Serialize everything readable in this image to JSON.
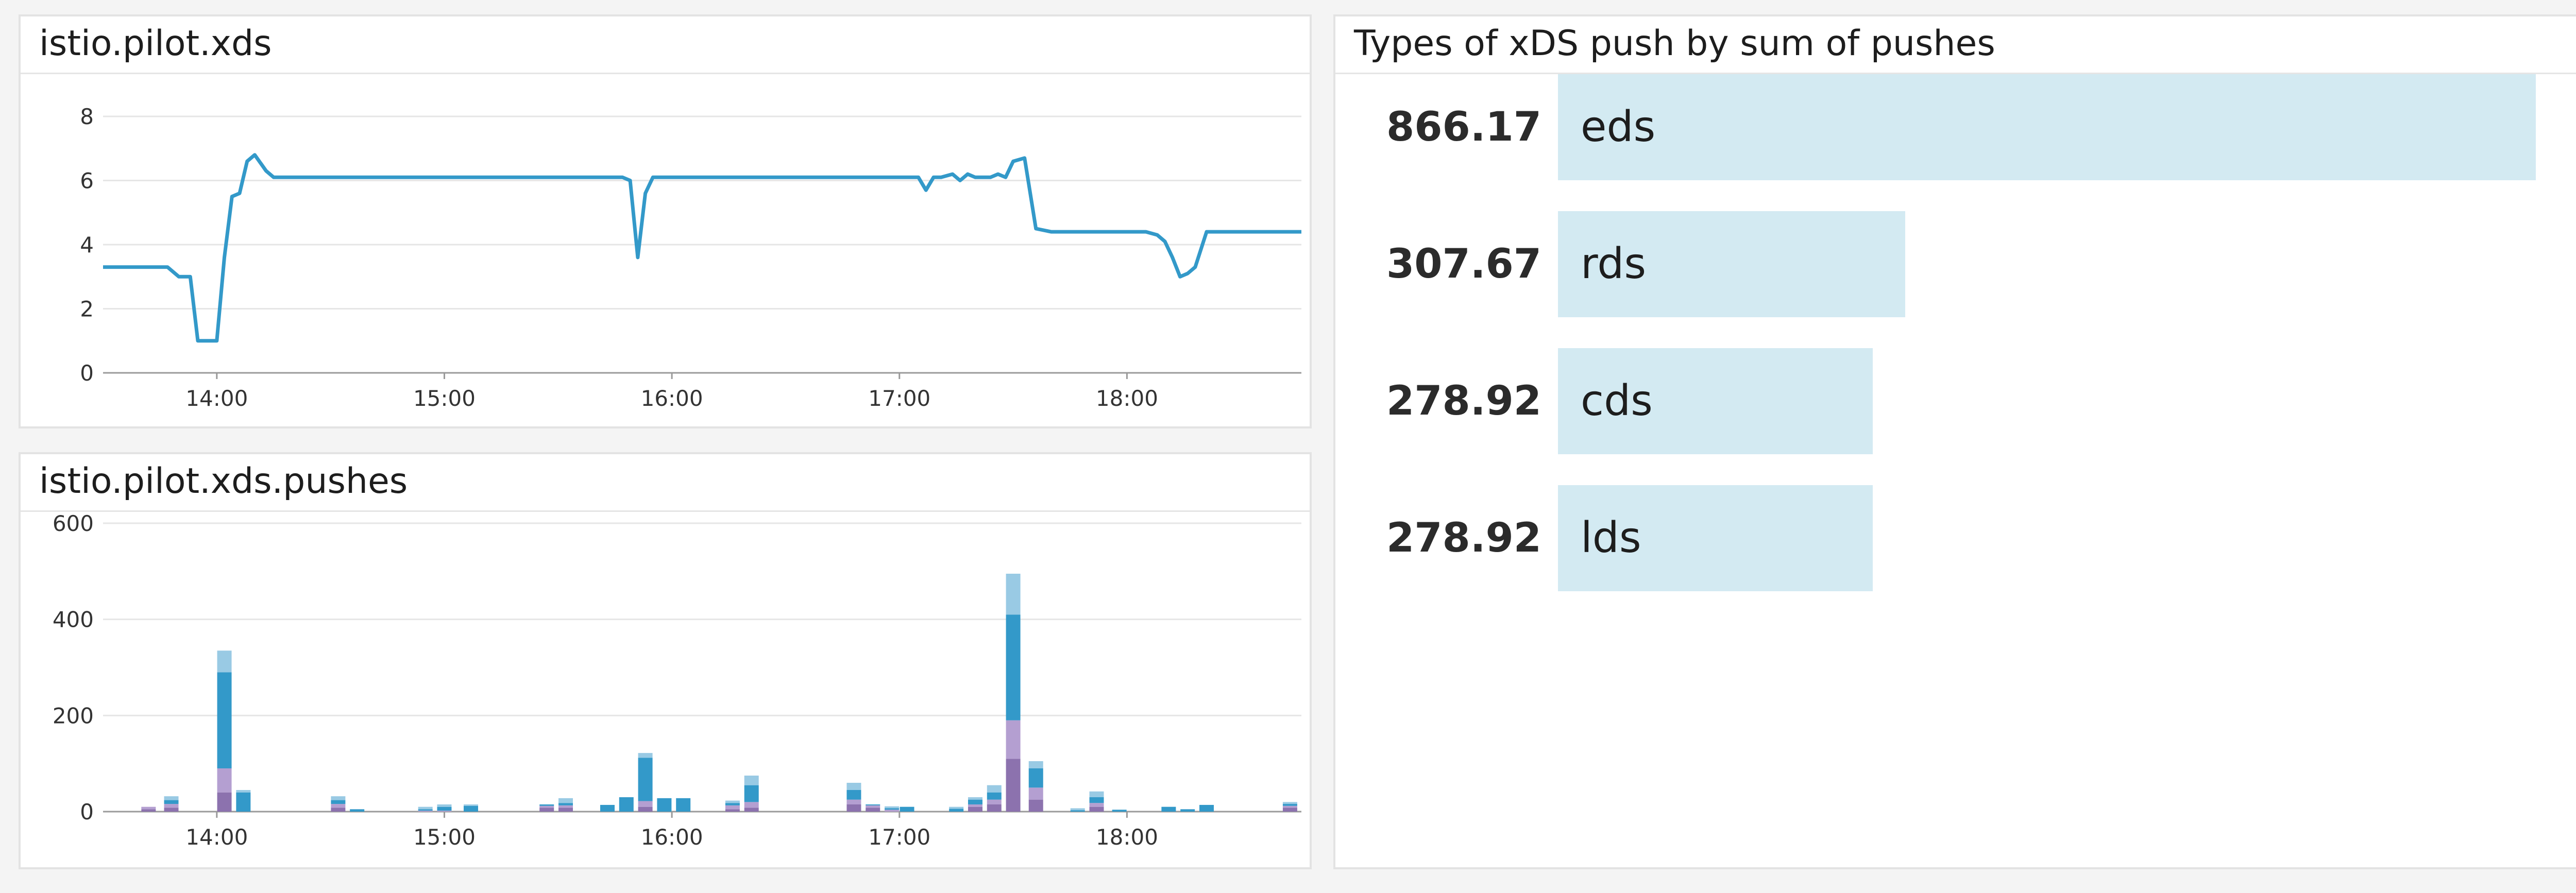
{
  "panels": {
    "xds": {
      "title": "istio.pilot.xds"
    },
    "pushes": {
      "title": "istio.pilot.xds.pushes"
    },
    "types": {
      "title": "Types of xDS push by sum of pushes"
    }
  },
  "colors": {
    "line": "#3399c9",
    "toplist_bar": "#d3eaf2",
    "stack": [
      "#8c72ae",
      "#b49fd1",
      "#3399c9",
      "#99cae4"
    ]
  },
  "chart_data": [
    {
      "type": "line",
      "title": "istio.pilot.xds",
      "xlabel": "",
      "ylabel": "",
      "x_ticks": [
        "14:00",
        "15:00",
        "16:00",
        "17:00",
        "18:00"
      ],
      "x_range": [
        "13:30",
        "18:46"
      ],
      "ylim": [
        0,
        8
      ],
      "y_ticks": [
        0,
        2,
        4,
        6,
        8
      ],
      "grid": true,
      "series": [
        {
          "x": [
            "13:30",
            "13:47",
            "13:50",
            "13:53",
            "13:55",
            "14:00",
            "14:02",
            "14:04",
            "14:06",
            "14:08",
            "14:10",
            "14:13",
            "14:15",
            "14:20",
            "14:40",
            "15:00",
            "15:20",
            "15:40",
            "15:47",
            "15:49",
            "15:51",
            "15:53",
            "15:55",
            "16:00",
            "16:20",
            "16:40",
            "17:00",
            "17:05",
            "17:07",
            "17:09",
            "17:11",
            "17:14",
            "17:16",
            "17:18",
            "17:20",
            "17:24",
            "17:26",
            "17:28",
            "17:30",
            "17:33",
            "17:36",
            "17:40",
            "17:50",
            "18:00",
            "18:05",
            "18:08",
            "18:10",
            "18:12",
            "18:14",
            "18:16",
            "18:18",
            "18:21",
            "18:24",
            "18:26",
            "18:30",
            "18:40",
            "18:46"
          ],
          "y": [
            3.3,
            3.3,
            3.0,
            3.0,
            1.0,
            1.0,
            3.6,
            5.5,
            5.6,
            6.6,
            6.8,
            6.3,
            6.1,
            6.1,
            6.1,
            6.1,
            6.1,
            6.1,
            6.1,
            6.0,
            3.6,
            5.6,
            6.1,
            6.1,
            6.1,
            6.1,
            6.1,
            6.1,
            5.7,
            6.1,
            6.1,
            6.2,
            6.0,
            6.2,
            6.1,
            6.1,
            6.2,
            6.1,
            6.6,
            6.7,
            4.5,
            4.4,
            4.4,
            4.4,
            4.4,
            4.3,
            4.1,
            3.6,
            3.0,
            3.1,
            3.3,
            4.4,
            4.4,
            4.4,
            4.4,
            4.4,
            4.4
          ]
        }
      ]
    },
    {
      "type": "bar",
      "stacked": true,
      "title": "istio.pilot.xds.pushes",
      "xlabel": "",
      "ylabel": "",
      "x_ticks": [
        "14:00",
        "15:00",
        "16:00",
        "17:00",
        "18:00"
      ],
      "x_range": [
        "13:30",
        "18:46"
      ],
      "ylim": [
        0,
        600
      ],
      "y_ticks": [
        0,
        200,
        400,
        600
      ],
      "grid": true,
      "categories": [
        "13:42",
        "13:48",
        "14:02",
        "14:07",
        "14:32",
        "14:37",
        "14:55",
        "15:00",
        "15:07",
        "15:27",
        "15:32",
        "15:43",
        "15:48",
        "15:53",
        "15:58",
        "16:03",
        "16:16",
        "16:21",
        "16:48",
        "16:53",
        "16:58",
        "17:02",
        "17:15",
        "17:20",
        "17:25",
        "17:30",
        "17:36",
        "17:47",
        "17:52",
        "17:58",
        "18:11",
        "18:16",
        "18:21",
        "18:43"
      ],
      "series": [
        {
          "name": "",
          "values": [
            5,
            8,
            40,
            0,
            8,
            0,
            0,
            0,
            0,
            8,
            8,
            0,
            0,
            10,
            0,
            0,
            5,
            8,
            15,
            8,
            0,
            0,
            0,
            10,
            15,
            110,
            25,
            0,
            10,
            0,
            0,
            0,
            0,
            8
          ]
        },
        {
          "name": "",
          "values": [
            5,
            8,
            50,
            0,
            8,
            0,
            2,
            2,
            0,
            4,
            5,
            0,
            0,
            12,
            0,
            0,
            8,
            12,
            10,
            5,
            4,
            0,
            0,
            5,
            10,
            80,
            25,
            0,
            8,
            0,
            0,
            0,
            0,
            4
          ]
        },
        {
          "name": "",
          "values": [
            0,
            8,
            200,
            40,
            8,
            5,
            3,
            8,
            12,
            3,
            5,
            14,
            30,
            90,
            28,
            28,
            5,
            35,
            20,
            2,
            3,
            10,
            6,
            10,
            15,
            220,
            40,
            3,
            12,
            4,
            10,
            5,
            14,
            4
          ]
        },
        {
          "name": "",
          "values": [
            0,
            8,
            45,
            5,
            8,
            0,
            5,
            5,
            3,
            0,
            10,
            0,
            0,
            10,
            0,
            0,
            5,
            20,
            15,
            0,
            4,
            0,
            4,
            5,
            15,
            85,
            15,
            4,
            12,
            0,
            0,
            0,
            0,
            4
          ]
        }
      ]
    },
    {
      "type": "bar",
      "orientation": "horizontal",
      "title": "Types of xDS push by sum of pushes",
      "categories": [
        "eds",
        "rds",
        "cds",
        "lds"
      ],
      "values": [
        866.17,
        307.67,
        278.92,
        278.92
      ],
      "value_labels": [
        "866.17",
        "307.67",
        "278.92",
        "278.92"
      ]
    }
  ]
}
